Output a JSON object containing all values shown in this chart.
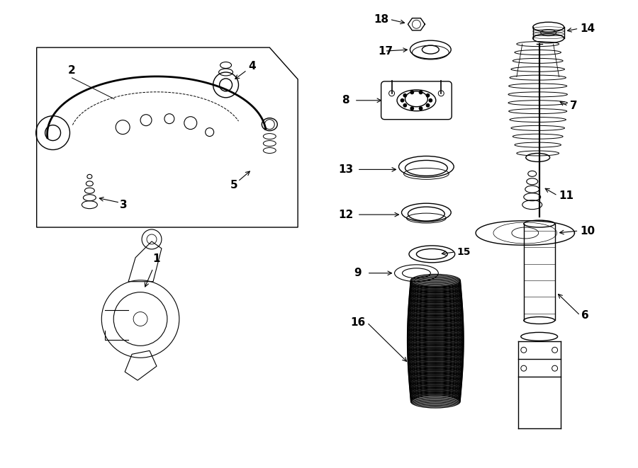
{
  "bg_color": "#ffffff",
  "line_color": "#000000",
  "fig_width": 9.0,
  "fig_height": 6.61
}
